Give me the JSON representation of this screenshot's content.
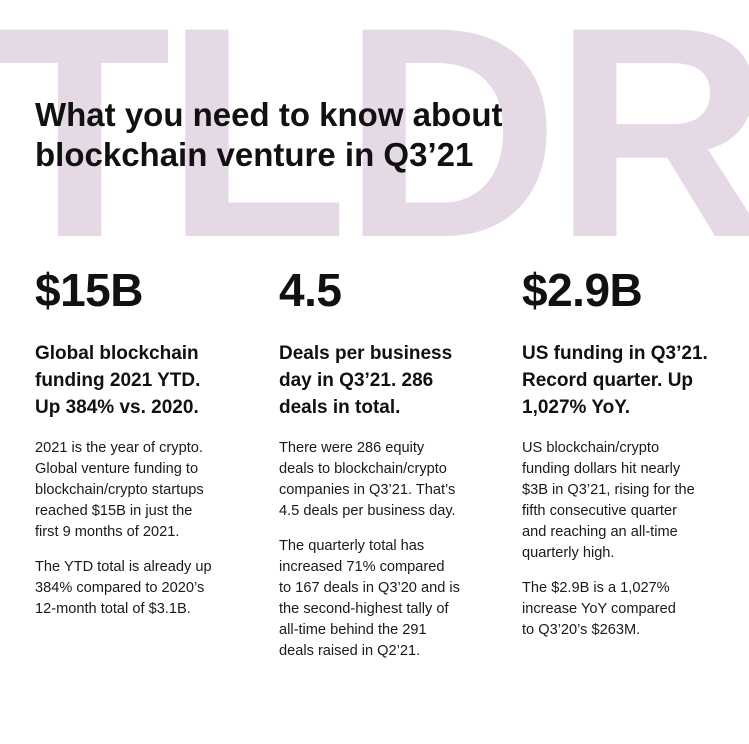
{
  "watermark": "TLDR",
  "title": {
    "line1": "What you need to know about",
    "line2": "blockchain venture in Q3’21"
  },
  "columns": [
    {
      "stat": "$15B",
      "subhead": [
        "Global blockchain",
        "funding 2021 YTD.",
        "Up 384% vs. 2020."
      ],
      "paragraphs": [
        [
          "2021 is the year of crypto.",
          "Global venture funding to",
          "blockchain/crypto startups",
          "reached $15B in just the",
          "first 9 months of 2021."
        ],
        [
          "The YTD total is already up",
          "384% compared to 2020’s",
          "12-month total of $3.1B."
        ]
      ]
    },
    {
      "stat": "4.5",
      "subhead": [
        "Deals per business",
        "day in Q3’21. 286",
        "deals in total."
      ],
      "paragraphs": [
        [
          "There were 286 equity",
          "deals to blockchain/crypto",
          "companies in Q3’21. That’s",
          "4.5 deals per business day."
        ],
        [
          "The quarterly total has",
          "increased 71% compared",
          "to 167 deals in Q3’20 and is",
          "the second-highest tally of",
          "all-time behind the 291",
          "deals raised in Q2’21."
        ]
      ]
    },
    {
      "stat": "$2.9B",
      "subhead": [
        "US funding in Q3’21.",
        "Record quarter. Up",
        "1,027% YoY."
      ],
      "paragraphs": [
        [
          "US blockchain/crypto",
          "funding dollars hit nearly",
          "$3B in Q3’21, rising for the",
          "fifth consecutive quarter",
          "and reaching an all-time",
          "quarterly high."
        ],
        [
          "The $2.9B is a 1,027%",
          "increase YoY compared",
          "to Q3’20’s $263M."
        ]
      ]
    }
  ]
}
